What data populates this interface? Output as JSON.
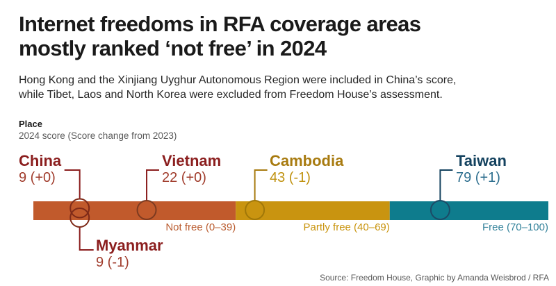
{
  "header": {
    "title_line1": "Internet freedoms in RFA coverage areas",
    "title_line2": "mostly ranked ‘not free’ in 2024",
    "subtitle_line1": "Hong Kong and the Xinjiang Uyghur Autonomous Region were included in China’s score,",
    "subtitle_line2": "while Tibet, Laos and North Korea were excluded from Freedom House’s assessment."
  },
  "legend": {
    "label": "Place",
    "sublabel": "2024 score (Score change from 2023)"
  },
  "footer": {
    "source": "Source: Freedom House, Graphic by Amanda Weisbrod / RFA"
  },
  "chart_data": {
    "type": "scatter",
    "description": "Internet freedom scores (0-100) plotted as circles on a colored category band",
    "scale": {
      "min": 0,
      "max": 100
    },
    "places": [
      {
        "name": "China",
        "score": 9,
        "change": "+0",
        "score_label": "9 (+0)",
        "category": "Not free",
        "name_color": "#8B1E1E",
        "score_color": "#A13D2D",
        "marker_color": "#7E2A18"
      },
      {
        "name": "Myanmar",
        "score": 9,
        "change": "-1",
        "score_label": "9 (-1)",
        "category": "Not free",
        "name_color": "#8B1E1E",
        "score_color": "#A13D2D",
        "marker_color": "#7E2A18"
      },
      {
        "name": "Vietnam",
        "score": 22,
        "change": "+0",
        "score_label": "22 (+0)",
        "category": "Not free",
        "name_color": "#8B1E1E",
        "score_color": "#A13D2D",
        "marker_color": "#7C3A20"
      },
      {
        "name": "Cambodia",
        "score": 43,
        "change": "-1",
        "score_label": "43 (-1)",
        "category": "Partly free",
        "name_color": "#A87B10",
        "score_color": "#C09210",
        "marker_color": "#A07708"
      },
      {
        "name": "Taiwan",
        "score": 79,
        "change": "+1",
        "score_label": "79 (+1)",
        "category": "Free",
        "name_color": "#14425F",
        "score_color": "#2E6F8F",
        "marker_color": "#1C4A66"
      }
    ],
    "segments": [
      {
        "label": "Not free (0–39)",
        "range": [
          0,
          39
        ],
        "span": [
          0,
          39.3
        ],
        "color": "#C15A2C",
        "label_color": "#BA5D31"
      },
      {
        "label": "Partly free (40–69)",
        "range": [
          40,
          69
        ],
        "span": [
          39.3,
          69.2
        ],
        "color": "#C99410",
        "label_color": "#C9940E"
      },
      {
        "label": "Free (70–100)",
        "range": [
          70,
          100
        ],
        "span": [
          69.2,
          100
        ],
        "color": "#0E7C8D",
        "label_color": "#35839B"
      }
    ]
  }
}
